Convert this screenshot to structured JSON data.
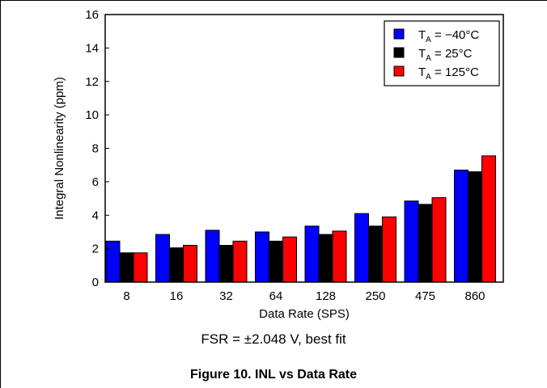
{
  "chart_data": {
    "type": "bar",
    "xlabel": "Data Rate (SPS)",
    "ylabel": "Integral Nonlinearity (ppm)",
    "ylim": [
      0,
      16
    ],
    "yticks": [
      "0",
      "2",
      "4",
      "6",
      "8",
      "10",
      "12",
      "14",
      "16"
    ],
    "categories": [
      "8",
      "16",
      "32",
      "64",
      "128",
      "250",
      "475",
      "860"
    ],
    "series": [
      {
        "name": "T_A = −40°C",
        "name_main": "T",
        "name_sub": "A",
        "name_rest": " = −40°C",
        "color": "#0000ff",
        "values": [
          2.45,
          2.85,
          3.1,
          3.0,
          3.35,
          4.1,
          4.85,
          6.7
        ]
      },
      {
        "name": "T_A = 25°C",
        "name_main": "T",
        "name_sub": "A",
        "name_rest": " = 25°C",
        "color": "#000000",
        "values": [
          1.75,
          2.05,
          2.2,
          2.45,
          2.85,
          3.35,
          4.65,
          6.6
        ]
      },
      {
        "name": "T_A = 125°C",
        "name_main": "T",
        "name_sub": "A",
        "name_rest": " = 125°C",
        "color": "#ff0000",
        "values": [
          1.75,
          2.2,
          2.45,
          2.7,
          3.05,
          3.9,
          5.05,
          7.55
        ]
      }
    ],
    "legend_position": "top-right",
    "grid": false
  },
  "conditions": "FSR = ±2.048 V, best fit",
  "caption": "Figure 10. INL vs Data Rate"
}
